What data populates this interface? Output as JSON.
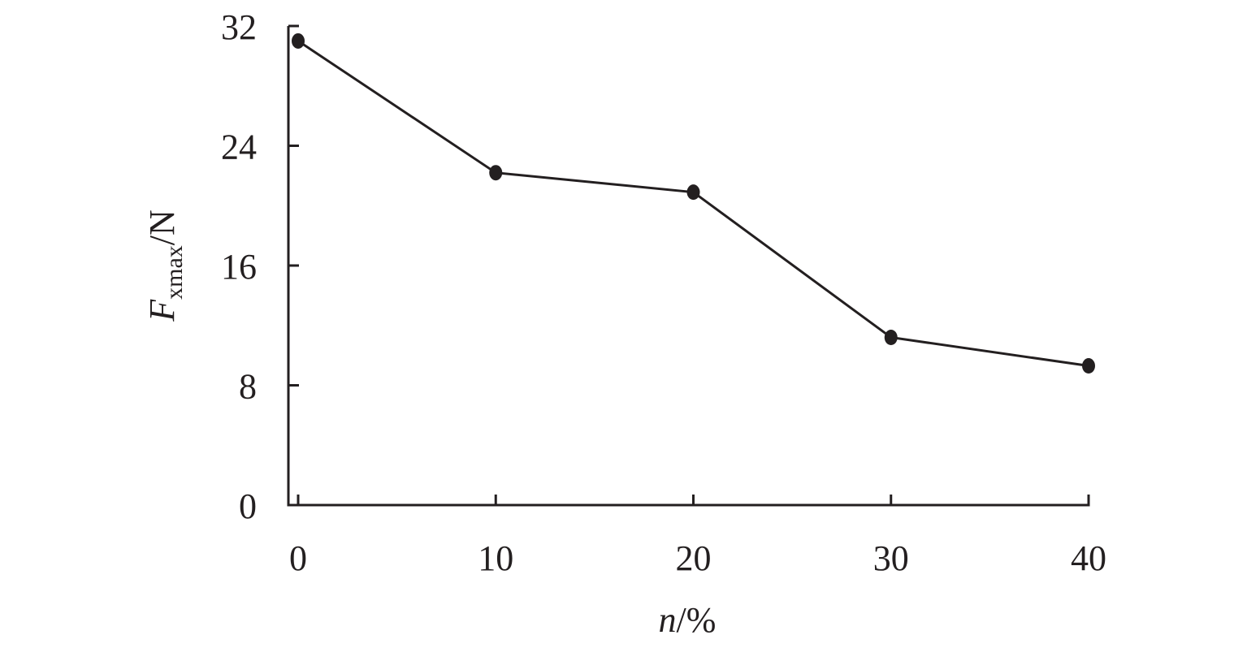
{
  "chart_data": {
    "type": "line",
    "xlabel": {
      "italic": "n",
      "rest": "/%"
    },
    "ylabel": {
      "italic": "F",
      "subscript": "xmax",
      "rest": "/N"
    },
    "x": [
      0,
      10,
      20,
      30,
      40
    ],
    "series": [
      {
        "values": [
          31,
          22.2,
          20.9,
          11.2,
          9.3
        ]
      }
    ],
    "xlim": [
      0,
      40
    ],
    "ylim": [
      0,
      32
    ],
    "xticks": [
      "0",
      "10",
      "20",
      "30",
      "40"
    ],
    "yticks": [
      "0",
      "8",
      "16",
      "24",
      "32"
    ],
    "grid": false,
    "legend": "none",
    "color": "#231f20"
  }
}
